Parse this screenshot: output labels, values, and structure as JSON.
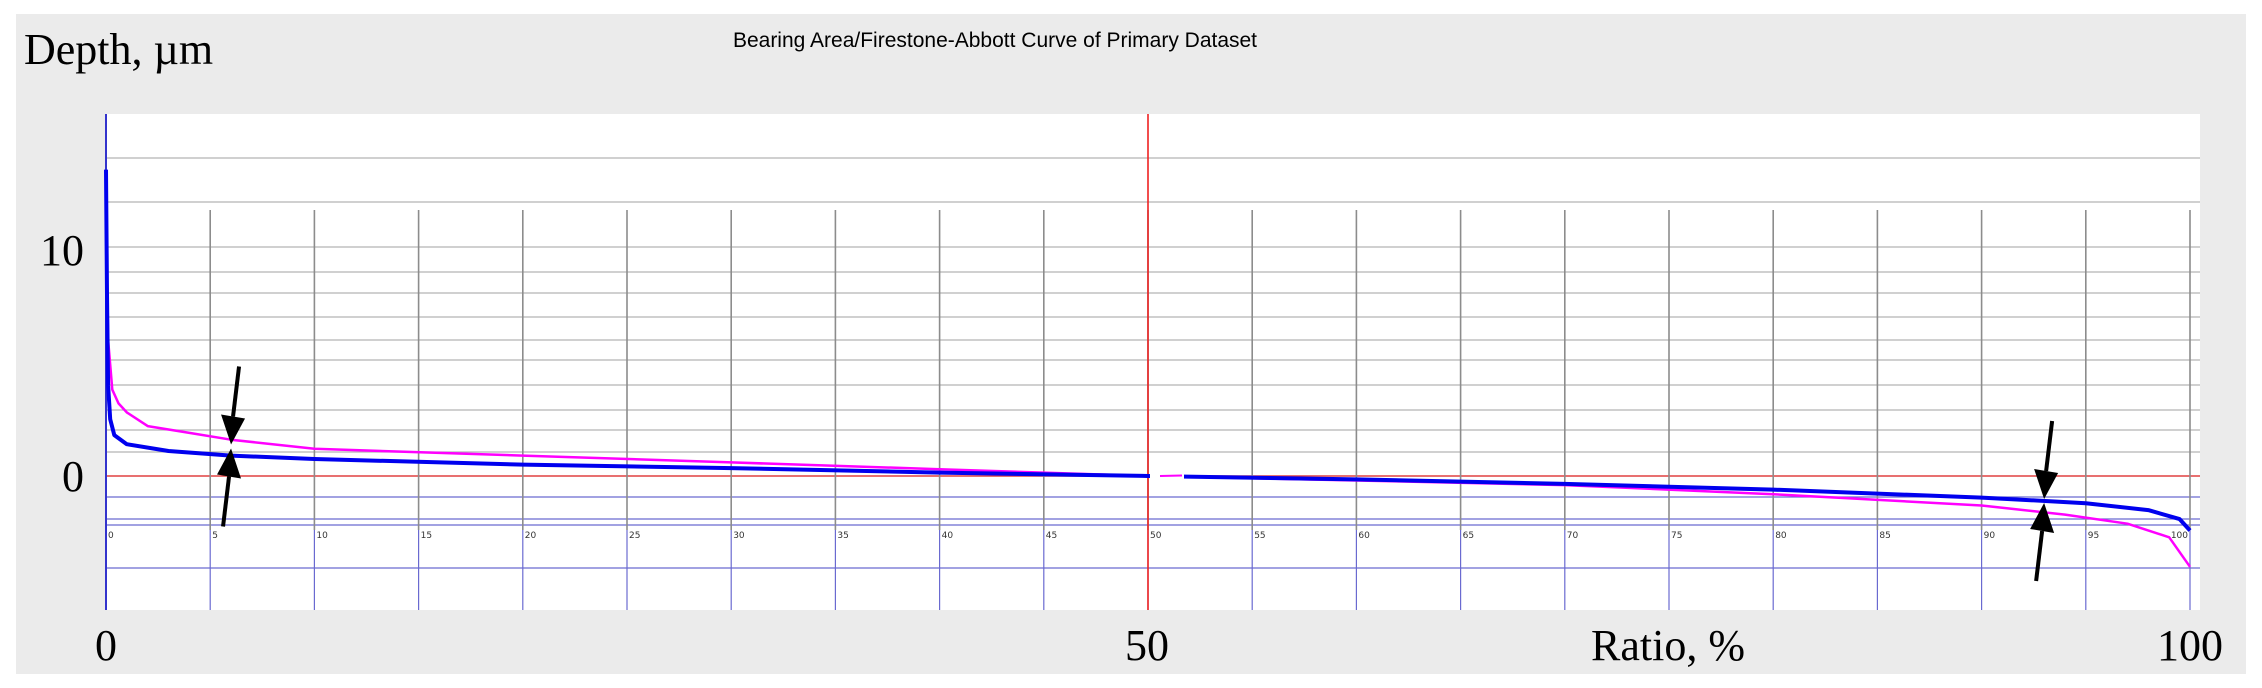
{
  "chart_data": {
    "type": "line",
    "title": "Bearing Area/Firestone-Abbott Curve of Primary Dataset",
    "ylabel": "Depth, µm",
    "xlabel": "Ratio, %",
    "xlim": [
      0,
      100
    ],
    "ylim": [
      -6,
      16
    ],
    "major_x_ticks": [
      "0",
      "50",
      "100"
    ],
    "major_y_ticks": [
      "10",
      "0"
    ],
    "minor_x_ticks": [
      "0",
      "5",
      "10",
      "15",
      "20",
      "25",
      "30",
      "35",
      "40",
      "45",
      "50",
      "55",
      "60",
      "65",
      "70",
      "75",
      "80",
      "85",
      "90",
      "95",
      "100"
    ],
    "marker_ratios": [
      50
    ],
    "zero_line": 0,
    "series": [
      {
        "color": "#ff00ff",
        "x": [
          0,
          0.1,
          0.3,
          0.6,
          1,
          2,
          4,
          6,
          10,
          20,
          30,
          40,
          50,
          60,
          70,
          80,
          90,
          94,
          97,
          99,
          100
        ],
        "y": [
          12,
          6,
          3.8,
          3.2,
          2.8,
          2.2,
          1.9,
          1.6,
          1.2,
          0.9,
          0.6,
          0.3,
          0.0,
          -0.2,
          -0.4,
          -0.8,
          -1.3,
          -1.7,
          -2.1,
          -2.7,
          -4.0
        ]
      },
      {
        "color": "#0000ee",
        "x": [
          0,
          0.05,
          0.1,
          0.2,
          0.4,
          1,
          3,
          6,
          10,
          20,
          30,
          40,
          50,
          60,
          70,
          80,
          90,
          95,
          98,
          99.5,
          100
        ],
        "y": [
          13.5,
          8,
          4,
          2.5,
          1.8,
          1.4,
          1.1,
          0.9,
          0.75,
          0.5,
          0.35,
          0.15,
          0.0,
          -0.15,
          -0.35,
          -0.6,
          -0.95,
          -1.2,
          -1.5,
          -1.9,
          -2.4
        ]
      }
    ],
    "annotations": [
      {
        "type": "arrow-pair",
        "x": 6,
        "y": 1.3
      },
      {
        "type": "arrow-pair",
        "x": 93,
        "y": -1.1
      }
    ]
  }
}
